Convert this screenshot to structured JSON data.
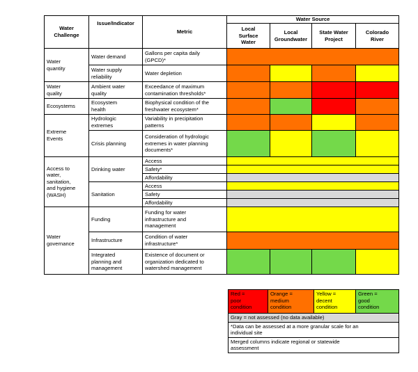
{
  "header": {
    "water_challenge": "Water\nChallenge",
    "issue_indicator": "Issue/Indicator",
    "metric": "Metric",
    "water_source": "Water Source",
    "local_surface": "Local\nSurface\nWater",
    "local_groundwater": "Local\nGroundwater",
    "state_water_project": "State Water\nProject",
    "colorado_river": "Colorado\nRiver"
  },
  "challenges": {
    "water_quantity": "Water\nquantity",
    "water_quality": "Water\nquality",
    "ecosystems": "Ecosystems",
    "extreme_events": "Extreme\nEvents",
    "wash": "Access to\nwater,\nsanitation,\nand hygiene\n(WASH)",
    "water_governance": "Water\ngovernance"
  },
  "issues": {
    "water_demand": "Water demand",
    "water_supply_reliability": "Water supply\nreliability",
    "ambient_water_quality": "Ambient water\nquality",
    "ecosystem_health": "Ecosystem\nhealth",
    "hydrologic_extremes": "Hydrologic\nextremes",
    "crisis_planning": "Crisis planning",
    "drinking_water": "Drinking water",
    "sanitation": "Sanitation",
    "funding": "Funding",
    "infrastructure": "Infrastructure",
    "integrated_planning": "Integrated\nplanning and\nmanagement"
  },
  "metrics": {
    "gpcd": "Gallons per capita daily\n(GPCD)*",
    "water_depletion": "Water depletion",
    "exceedance": "Exceedance of maximum\ncontamination thresholds*",
    "biophysical": "Biophysical condition of the\nfreshwater ecosystem*",
    "variability": "Variability in precipitation\npatterns",
    "consideration": "Consideration of hydrologic\nextremes in water planning\ndocuments*",
    "dw_access": "Access",
    "dw_safety": "Safety*",
    "dw_affordability": "Affordability",
    "san_access": "Access",
    "san_safety": "Safety",
    "san_affordability": "Affordability",
    "funding_metric": "Funding for water\ninfrastructure and\nmanagement",
    "condition_infra": "Condition of water\ninfrastructure*",
    "existence_doc": "Existence of document or\norganization dedicated to\nwatershed management"
  },
  "colors": {
    "red": "#ff0000",
    "orange": "#ff7000",
    "yellow": "#ffff00",
    "green": "#74d94a",
    "gray": "#d9d9d9"
  },
  "legend": {
    "red": "Red =\npoor\ncondition",
    "orange": "Orange =\nmedium\ncondition",
    "yellow": "Yellow =\ndecent\ncondition",
    "green": "Green =\ngood\ncondition",
    "gray": "Gray = not assessed (no data available)",
    "note_granular": "*Data can be assessed at a more granular scale for an\nindividual site",
    "note_merged": "Merged columns indicate regional or statewide\nassessment"
  }
}
